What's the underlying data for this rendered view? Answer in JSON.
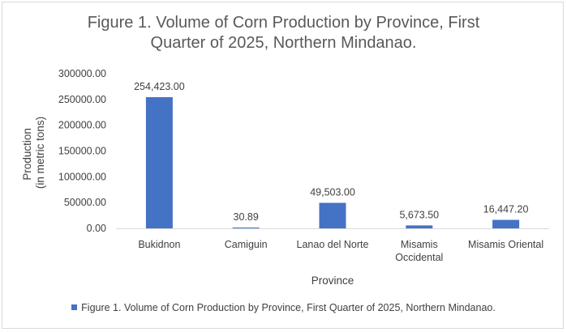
{
  "chart_data": {
    "type": "bar",
    "title_lines": [
      "Figure 1. Volume of Corn Production by Province, First",
      "Quarter of 2025, Northern Mindanao."
    ],
    "categories": [
      "Bukidnon",
      "Camiguin",
      "Lanao del Norte",
      "Misamis Occidental",
      "Misamis Oriental"
    ],
    "category_label_lines": [
      [
        "Bukidnon"
      ],
      [
        "Camiguin"
      ],
      [
        "Lanao del Norte"
      ],
      [
        "Misamis",
        "Occidental"
      ],
      [
        "Misamis Oriental"
      ]
    ],
    "series": [
      {
        "name": "Figure 1. Volume of Corn Production by Province, First Quarter of 2025, Northern Mindanao.",
        "values": [
          254423.0,
          30.89,
          49503.0,
          5673.5,
          16447.2
        ],
        "data_labels": [
          "254,423.00",
          "30.89",
          "49,503.00",
          "5,673.50",
          "16,447.20"
        ]
      }
    ],
    "xlabel": "Province",
    "ylabel_lines": [
      "Production",
      "(in metric tons)"
    ],
    "ylim": [
      0,
      300000
    ],
    "yticks": [
      0,
      50000,
      100000,
      150000,
      200000,
      250000,
      300000
    ],
    "ytick_labels": [
      "0.00",
      "50000.00",
      "100000.00",
      "150000.00",
      "200000.00",
      "250000.00",
      "300000.00"
    ],
    "grid": false,
    "legend_position": "bottom",
    "bar_color": "#4472c4"
  }
}
